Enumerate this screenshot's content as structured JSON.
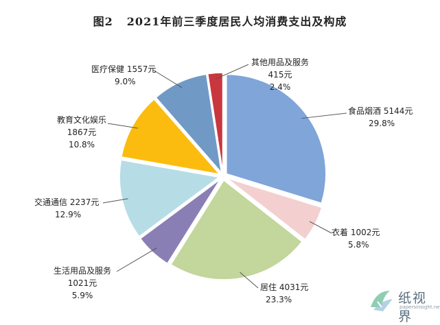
{
  "title": {
    "figure": "图2",
    "text": "2021年前三季度居民人均消费支出及构成"
  },
  "watermark": {
    "text": "纸视界",
    "sub": "papersinsight.net"
  },
  "chart_data": {
    "type": "pie",
    "title": "2021年前三季度居民人均消费支出及构成",
    "start_angle_deg": 0,
    "direction": "clockwise",
    "slices": [
      {
        "name": "食品烟酒",
        "value": 5144,
        "amount": "5144元",
        "percent": "29.8%",
        "color": "#7fa5d9"
      },
      {
        "name": "衣着",
        "value": 1002,
        "amount": "1002元",
        "percent": "5.8%",
        "color": "#f3cfd0"
      },
      {
        "name": "居住",
        "value": 4031,
        "amount": "4031元",
        "percent": "23.3%",
        "color": "#c3d69b"
      },
      {
        "name": "生活用品及服务",
        "value": 1021,
        "amount": "1021元",
        "percent": "5.9%",
        "color": "#8a7fb5"
      },
      {
        "name": "交通通信",
        "value": 2237,
        "amount": "2237元",
        "percent": "12.9%",
        "color": "#b6dde6"
      },
      {
        "name": "教育文化娱乐",
        "value": 1867,
        "amount": "1867元",
        "percent": "10.8%",
        "color": "#fbbc0f"
      },
      {
        "name": "医疗保健",
        "value": 1557,
        "amount": "1557元",
        "percent": "9.0%",
        "color": "#7199c6"
      },
      {
        "name": "其他用品及服务",
        "value": 415,
        "amount": "415元",
        "percent": "2.4%",
        "color": "#c9373e"
      }
    ]
  }
}
